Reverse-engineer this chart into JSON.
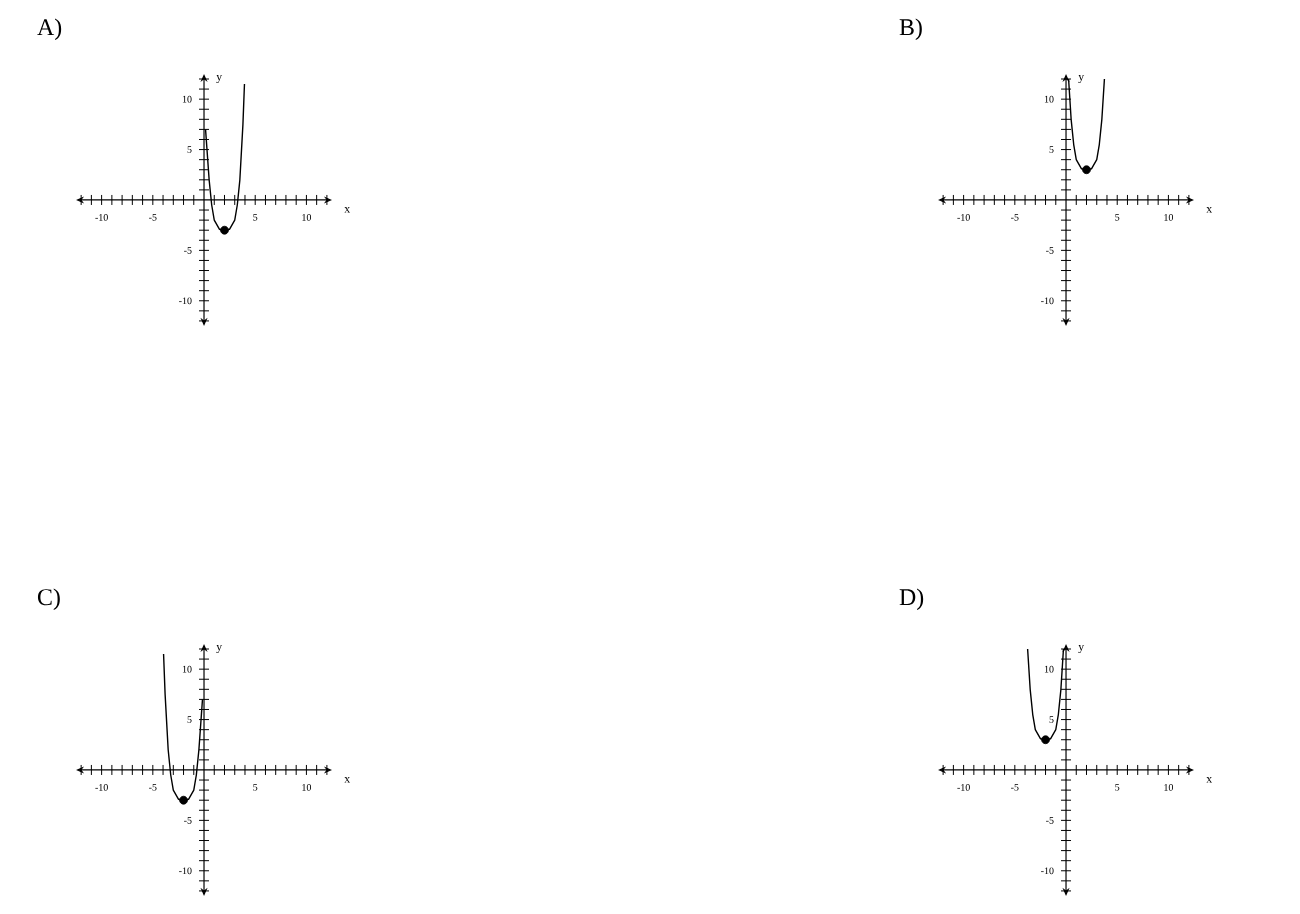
{
  "chart_data": [
    {
      "type": "line",
      "title": "A)",
      "xlabel": "x",
      "ylabel": "y",
      "xlim": [
        -12.5,
        12.5
      ],
      "ylim": [
        -12.5,
        12.5
      ],
      "xticks": [
        {
          "value": -12,
          "label": null
        },
        {
          "value": -11,
          "label": null
        },
        -10,
        {
          "value": -9,
          "label": null
        },
        {
          "value": -8,
          "label": null
        },
        {
          "value": -7,
          "label": null
        },
        {
          "value": -6,
          "label": null
        },
        -5,
        {
          "value": -4,
          "label": null
        },
        {
          "value": -3,
          "label": null
        },
        {
          "value": -2,
          "label": null
        },
        {
          "value": -1,
          "label": null
        },
        {
          "value": 1,
          "label": null
        },
        {
          "value": 2,
          "label": null
        },
        {
          "value": 3,
          "label": null
        },
        {
          "value": 4,
          "label": null
        },
        5,
        {
          "value": 6,
          "label": null
        },
        {
          "value": 7,
          "label": null
        },
        {
          "value": 8,
          "label": null
        },
        {
          "value": 9,
          "label": null
        },
        10,
        {
          "value": 11,
          "label": null
        },
        {
          "value": 12,
          "label": null
        }
      ],
      "yticks": [
        {
          "value": -12,
          "label": null
        },
        {
          "value": -11,
          "label": null
        },
        -10,
        {
          "value": -9,
          "label": null
        },
        {
          "value": -8,
          "label": null
        },
        {
          "value": -7,
          "label": null
        },
        {
          "value": -6,
          "label": null
        },
        -5,
        {
          "value": -4,
          "label": null
        },
        {
          "value": -3,
          "label": null
        },
        {
          "value": -2,
          "label": null
        },
        {
          "value": -1,
          "label": null
        },
        {
          "value": 1,
          "label": null
        },
        {
          "value": 2,
          "label": null
        },
        {
          "value": 3,
          "label": null
        },
        {
          "value": 4,
          "label": null
        },
        5,
        {
          "value": 6,
          "label": null
        },
        {
          "value": 7,
          "label": null
        },
        {
          "value": 8,
          "label": null
        },
        {
          "value": 9,
          "label": null
        },
        10,
        {
          "value": 11,
          "label": null
        },
        {
          "value": 12,
          "label": null
        }
      ],
      "series": [
        {
          "color": "#000000",
          "x": [
            0.15,
            0.5,
            0.75,
            1,
            1.5,
            2,
            2.5,
            3,
            3.25,
            3.5,
            3.8,
            3.95
          ],
          "values": [
            7,
            2,
            -0.5,
            -2,
            -2.9,
            -3,
            -2.9,
            -2,
            -0.5,
            2,
            7.5,
            11.5
          ]
        },
        {
          "type": "scatter",
          "color": "#000000",
          "marker": "circle",
          "x": [
            2
          ],
          "values": [
            -3
          ]
        }
      ]
    },
    {
      "type": "line",
      "title": "B)",
      "xlabel": "x",
      "ylabel": "y",
      "xlim": [
        -12.5,
        12.5
      ],
      "ylim": [
        -12.5,
        12.5
      ],
      "xticks": [
        {
          "value": -12,
          "label": null
        },
        {
          "value": -11,
          "label": null
        },
        -10,
        {
          "value": -9,
          "label": null
        },
        {
          "value": -8,
          "label": null
        },
        {
          "value": -7,
          "label": null
        },
        {
          "value": -6,
          "label": null
        },
        -5,
        {
          "value": -4,
          "label": null
        },
        {
          "value": -3,
          "label": null
        },
        {
          "value": -2,
          "label": null
        },
        {
          "value": -1,
          "label": null
        },
        {
          "value": 1,
          "label": null
        },
        {
          "value": 2,
          "label": null
        },
        {
          "value": 3,
          "label": null
        },
        {
          "value": 4,
          "label": null
        },
        5,
        {
          "value": 6,
          "label": null
        },
        {
          "value": 7,
          "label": null
        },
        {
          "value": 8,
          "label": null
        },
        {
          "value": 9,
          "label": null
        },
        10,
        {
          "value": 11,
          "label": null
        },
        {
          "value": 12,
          "label": null
        }
      ],
      "yticks": [
        {
          "value": -12,
          "label": null
        },
        {
          "value": -11,
          "label": null
        },
        -10,
        {
          "value": -9,
          "label": null
        },
        {
          "value": -8,
          "label": null
        },
        {
          "value": -7,
          "label": null
        },
        {
          "value": -6,
          "label": null
        },
        -5,
        {
          "value": -4,
          "label": null
        },
        {
          "value": -3,
          "label": null
        },
        {
          "value": -2,
          "label": null
        },
        {
          "value": -1,
          "label": null
        },
        {
          "value": 1,
          "label": null
        },
        {
          "value": 2,
          "label": null
        },
        {
          "value": 3,
          "label": null
        },
        {
          "value": 4,
          "label": null
        },
        5,
        {
          "value": 6,
          "label": null
        },
        {
          "value": 7,
          "label": null
        },
        {
          "value": 8,
          "label": null
        },
        {
          "value": 9,
          "label": null
        },
        10,
        {
          "value": 11,
          "label": null
        },
        {
          "value": 12,
          "label": null
        }
      ],
      "series": [
        {
          "color": "#000000",
          "x": [
            0.25,
            0.5,
            0.75,
            1,
            1.5,
            2,
            2.5,
            3,
            3.25,
            3.5,
            3.75
          ],
          "values": [
            12,
            8,
            5.5,
            4,
            3.1,
            3,
            3.1,
            4,
            5.5,
            8,
            12
          ]
        },
        {
          "type": "scatter",
          "color": "#000000",
          "marker": "circle",
          "x": [
            2
          ],
          "values": [
            3
          ]
        }
      ]
    },
    {
      "type": "line",
      "title": "C)",
      "xlabel": "x",
      "ylabel": "y",
      "xlim": [
        -12.5,
        12.5
      ],
      "ylim": [
        -12.5,
        12.5
      ],
      "xticks": [
        {
          "value": -12,
          "label": null
        },
        {
          "value": -11,
          "label": null
        },
        -10,
        {
          "value": -9,
          "label": null
        },
        {
          "value": -8,
          "label": null
        },
        {
          "value": -7,
          "label": null
        },
        {
          "value": -6,
          "label": null
        },
        -5,
        {
          "value": -4,
          "label": null
        },
        {
          "value": -3,
          "label": null
        },
        {
          "value": -2,
          "label": null
        },
        {
          "value": -1,
          "label": null
        },
        {
          "value": 1,
          "label": null
        },
        {
          "value": 2,
          "label": null
        },
        {
          "value": 3,
          "label": null
        },
        {
          "value": 4,
          "label": null
        },
        5,
        {
          "value": 6,
          "label": null
        },
        {
          "value": 7,
          "label": null
        },
        {
          "value": 8,
          "label": null
        },
        {
          "value": 9,
          "label": null
        },
        10,
        {
          "value": 11,
          "label": null
        },
        {
          "value": 12,
          "label": null
        }
      ],
      "yticks": [
        {
          "value": -12,
          "label": null
        },
        {
          "value": -11,
          "label": null
        },
        -10,
        {
          "value": -9,
          "label": null
        },
        {
          "value": -8,
          "label": null
        },
        {
          "value": -7,
          "label": null
        },
        {
          "value": -6,
          "label": null
        },
        -5,
        {
          "value": -4,
          "label": null
        },
        {
          "value": -3,
          "label": null
        },
        {
          "value": -2,
          "label": null
        },
        {
          "value": -1,
          "label": null
        },
        {
          "value": 1,
          "label": null
        },
        {
          "value": 2,
          "label": null
        },
        {
          "value": 3,
          "label": null
        },
        {
          "value": 4,
          "label": null
        },
        5,
        {
          "value": 6,
          "label": null
        },
        {
          "value": 7,
          "label": null
        },
        {
          "value": 8,
          "label": null
        },
        {
          "value": 9,
          "label": null
        },
        10,
        {
          "value": 11,
          "label": null
        },
        {
          "value": 12,
          "label": null
        }
      ],
      "series": [
        {
          "color": "#000000",
          "x": [
            -3.95,
            -3.8,
            -3.5,
            -3.25,
            -3,
            -2.5,
            -2,
            -1.5,
            -1,
            -0.75,
            -0.5,
            -0.15
          ],
          "values": [
            11.5,
            7.5,
            2,
            -0.5,
            -2,
            -2.9,
            -3,
            -2.9,
            -2,
            -0.5,
            2,
            7
          ]
        },
        {
          "type": "scatter",
          "color": "#000000",
          "marker": "circle",
          "x": [
            -2
          ],
          "values": [
            -3
          ]
        }
      ]
    },
    {
      "type": "line",
      "title": "D)",
      "xlabel": "x",
      "ylabel": "y",
      "xlim": [
        -12.5,
        12.5
      ],
      "ylim": [
        -12.5,
        12.5
      ],
      "xticks": [
        {
          "value": -12,
          "label": null
        },
        {
          "value": -11,
          "label": null
        },
        -10,
        {
          "value": -9,
          "label": null
        },
        {
          "value": -8,
          "label": null
        },
        {
          "value": -7,
          "label": null
        },
        {
          "value": -6,
          "label": null
        },
        -5,
        {
          "value": -4,
          "label": null
        },
        {
          "value": -3,
          "label": null
        },
        {
          "value": -2,
          "label": null
        },
        {
          "value": -1,
          "label": null
        },
        {
          "value": 1,
          "label": null
        },
        {
          "value": 2,
          "label": null
        },
        {
          "value": 3,
          "label": null
        },
        {
          "value": 4,
          "label": null
        },
        5,
        {
          "value": 6,
          "label": null
        },
        {
          "value": 7,
          "label": null
        },
        {
          "value": 8,
          "label": null
        },
        {
          "value": 9,
          "label": null
        },
        10,
        {
          "value": 11,
          "label": null
        },
        {
          "value": 12,
          "label": null
        }
      ],
      "yticks": [
        {
          "value": -12,
          "label": null
        },
        {
          "value": -11,
          "label": null
        },
        -10,
        {
          "value": -9,
          "label": null
        },
        {
          "value": -8,
          "label": null
        },
        {
          "value": -7,
          "label": null
        },
        {
          "value": -6,
          "label": null
        },
        -5,
        {
          "value": -4,
          "label": null
        },
        {
          "value": -3,
          "label": null
        },
        {
          "value": -2,
          "label": null
        },
        {
          "value": -1,
          "label": null
        },
        {
          "value": 1,
          "label": null
        },
        {
          "value": 2,
          "label": null
        },
        {
          "value": 3,
          "label": null
        },
        {
          "value": 4,
          "label": null
        },
        5,
        {
          "value": 6,
          "label": null
        },
        {
          "value": 7,
          "label": null
        },
        {
          "value": 8,
          "label": null
        },
        {
          "value": 9,
          "label": null
        },
        10,
        {
          "value": 11,
          "label": null
        },
        {
          "value": 12,
          "label": null
        }
      ],
      "series": [
        {
          "color": "#000000",
          "x": [
            -3.75,
            -3.5,
            -3.25,
            -3,
            -2.5,
            -2,
            -1.5,
            -1,
            -0.75,
            -0.5,
            -0.25
          ],
          "values": [
            12,
            8,
            5.5,
            4,
            3.1,
            3,
            3.1,
            4,
            5.5,
            8,
            12
          ]
        },
        {
          "type": "scatter",
          "color": "#000000",
          "marker": "circle",
          "x": [
            -2
          ],
          "values": [
            3
          ]
        }
      ]
    }
  ]
}
